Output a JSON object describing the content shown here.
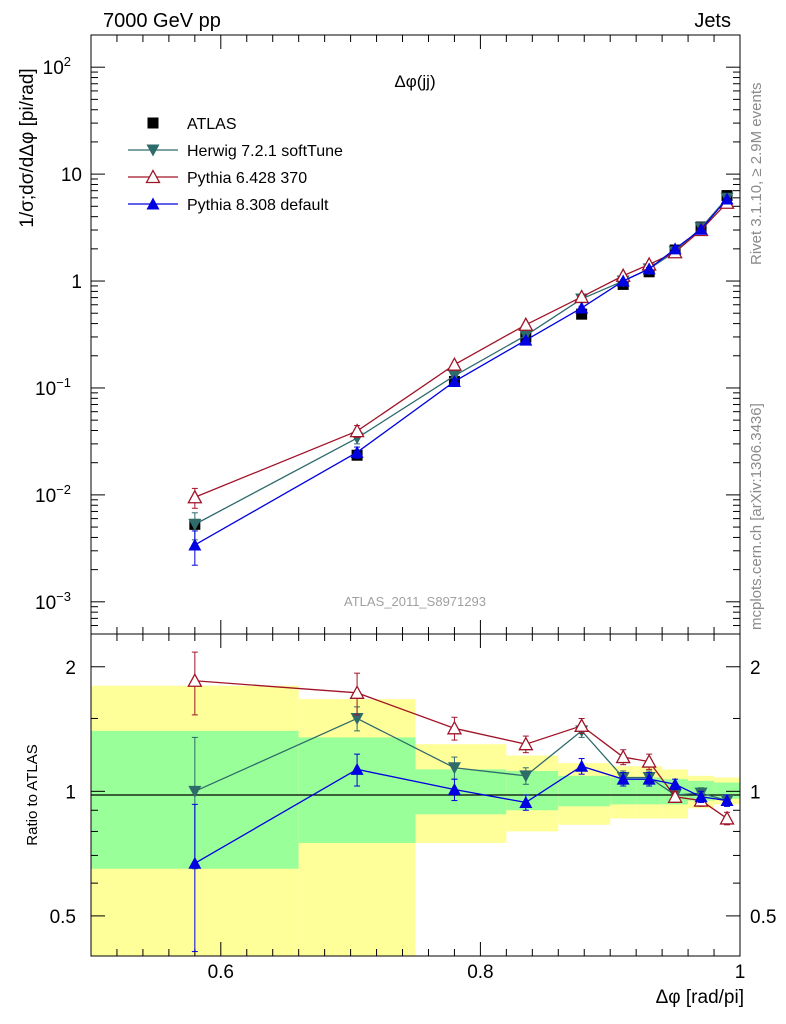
{
  "header": {
    "left": "7000 GeV pp",
    "right": "Jets"
  },
  "side_labels": {
    "rivet": "Rivet 3.1.10, ≥ 2.9M events",
    "mcplots": "mcplots.cern.ch [arXiv:1306.3436]"
  },
  "analysis_id": "ATLAS_2011_S8971293",
  "colors": {
    "atlas": "#000000",
    "herwig": "#2e6b6b",
    "pythia6": "#a01428",
    "pythia8": "#0000e0",
    "band_inner": "#99ff99",
    "band_outer": "#ffff99"
  },
  "chart_data": [
    {
      "type": "scatter",
      "title": "Δφ(jj)",
      "ylabel": "1/σ;dσ/dΔφ [pi/rad]",
      "yscale": "log",
      "xlim": [
        0.5,
        1.0
      ],
      "ylim": [
        0.0005,
        200
      ],
      "ytick_labels": [
        "10^-3",
        "10^-2",
        "10^-1",
        "1",
        "10",
        "10^2"
      ],
      "x": [
        0.58,
        0.705,
        0.78,
        0.835,
        0.878,
        0.91,
        0.93,
        0.95,
        0.97,
        0.99
      ],
      "series": [
        {
          "name": "ATLAS",
          "marker": "square",
          "values": [
            0.0053,
            0.0235,
            0.115,
            0.3,
            0.49,
            0.93,
            1.22,
            1.95,
            3.2,
            6.3
          ]
        },
        {
          "name": "Herwig 7.2.1 softTune",
          "marker": "triangle-down",
          "values": [
            0.0053,
            0.034,
            0.13,
            0.31,
            0.68,
            1.0,
            1.3,
            1.88,
            3.15,
            5.95
          ],
          "errors": [
            0.0015,
            0.004,
            0.006,
            0.012,
            0.02,
            0.03,
            0.04,
            0.05,
            0.08,
            0.12
          ]
        },
        {
          "name": "Pythia 6.428 370",
          "marker": "triangle-open",
          "values": [
            0.0095,
            0.0395,
            0.165,
            0.39,
            0.71,
            1.12,
            1.43,
            1.86,
            3.0,
            5.4
          ],
          "errors": [
            0.002,
            0.005,
            0.008,
            0.015,
            0.025,
            0.04,
            0.05,
            0.06,
            0.08,
            0.12
          ]
        },
        {
          "name": "Pythia 8.308 default",
          "marker": "triangle-up",
          "values": [
            0.0034,
            0.025,
            0.115,
            0.28,
            0.56,
            1.0,
            1.3,
            2.0,
            3.05,
            5.85
          ],
          "errors": [
            0.0012,
            0.003,
            0.006,
            0.01,
            0.02,
            0.03,
            0.04,
            0.05,
            0.07,
            0.12
          ]
        }
      ]
    },
    {
      "type": "line",
      "ylabel": "Ratio to ATLAS",
      "xlabel": "Δφ [rad/pi]",
      "yscale": "log",
      "xlim": [
        0.5,
        1.0
      ],
      "ylim": [
        0.4,
        2.4
      ],
      "xtick_labels": [
        "0.6",
        "0.8",
        "1"
      ],
      "ytick_labels": [
        "0.5",
        "1",
        "2"
      ],
      "bands": {
        "edges": [
          0.5,
          0.66,
          0.75,
          0.82,
          0.86,
          0.9,
          0.92,
          0.94,
          0.96,
          0.98,
          1.0
        ],
        "outer_low": [
          0.37,
          0.37,
          0.75,
          0.8,
          0.83,
          0.86,
          0.86,
          0.86,
          0.91,
          0.93
        ],
        "outer_high": [
          1.8,
          1.67,
          1.3,
          1.22,
          1.17,
          1.15,
          1.15,
          1.13,
          1.09,
          1.08
        ],
        "inner_low": [
          0.65,
          0.75,
          0.88,
          0.9,
          0.92,
          0.93,
          0.93,
          0.93,
          0.95,
          0.96
        ],
        "inner_high": [
          1.4,
          1.35,
          1.13,
          1.12,
          1.09,
          1.08,
          1.08,
          1.07,
          1.06,
          1.05
        ]
      },
      "x": [
        0.58,
        0.705,
        0.78,
        0.835,
        0.878,
        0.91,
        0.93,
        0.95,
        0.97,
        0.99
      ],
      "series": [
        {
          "name": "Herwig 7.2.1 softTune",
          "values": [
            1.0,
            1.5,
            1.14,
            1.09,
            1.4,
            1.08,
            1.08,
            0.98,
            0.99,
            0.95
          ],
          "errors": [
            0.35,
            0.1,
            0.07,
            0.05,
            0.05,
            0.04,
            0.04,
            0.03,
            0.03,
            0.03
          ]
        },
        {
          "name": "Pythia 6.428 370",
          "values": [
            1.85,
            1.73,
            1.42,
            1.3,
            1.44,
            1.21,
            1.18,
            0.97,
            0.95,
            0.86
          ],
          "errors": [
            0.32,
            0.2,
            0.09,
            0.06,
            0.06,
            0.05,
            0.05,
            0.03,
            0.03,
            0.03
          ]
        },
        {
          "name": "Pythia 8.308 default",
          "values": [
            0.67,
            1.13,
            1.01,
            0.94,
            1.15,
            1.07,
            1.07,
            1.04,
            0.97,
            0.95
          ],
          "errors": [
            0.26,
            0.1,
            0.06,
            0.04,
            0.05,
            0.04,
            0.04,
            0.03,
            0.03,
            0.03
          ]
        }
      ]
    }
  ]
}
